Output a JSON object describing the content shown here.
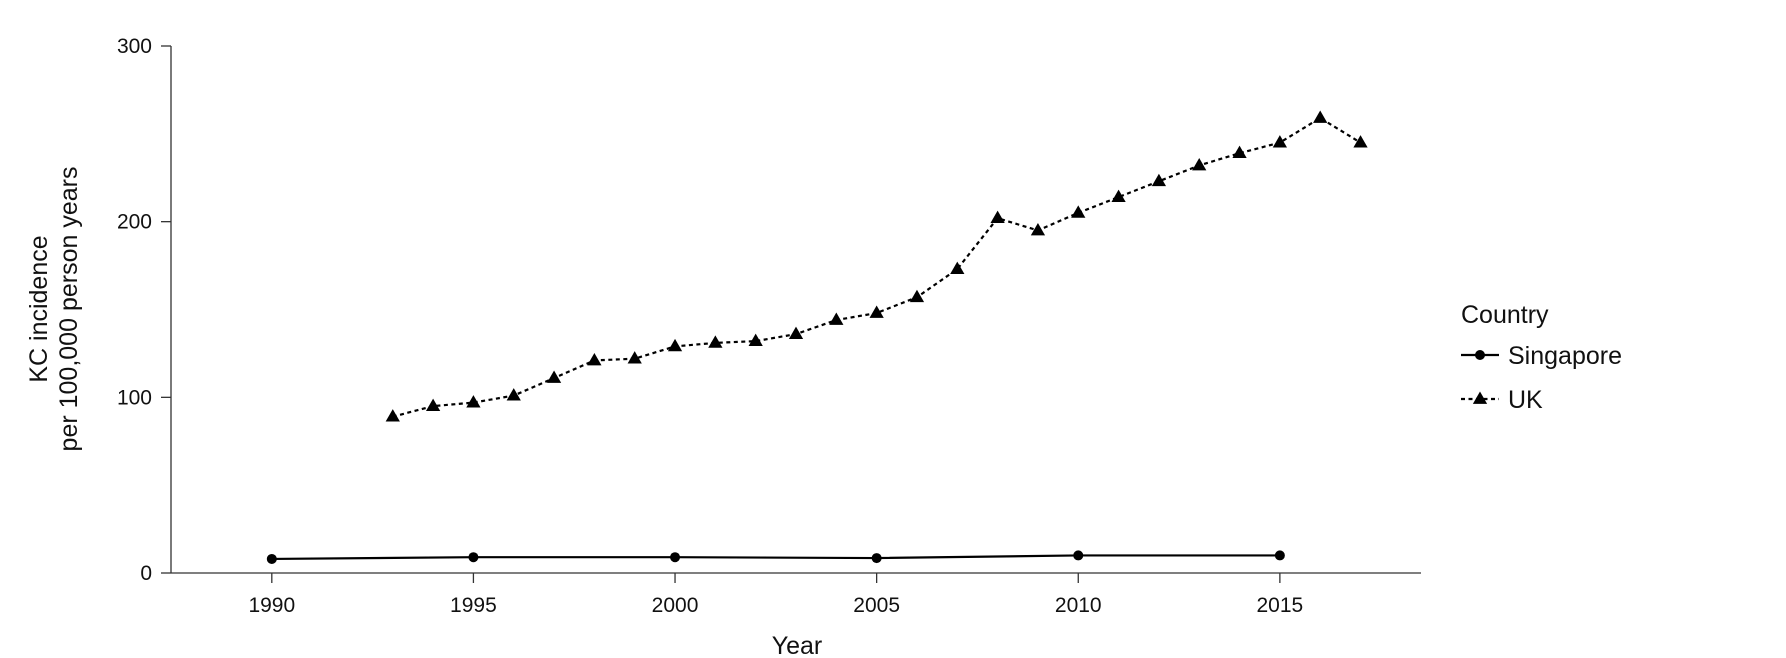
{
  "chart_data": {
    "type": "line",
    "title": "",
    "xlabel": "Year",
    "ylabel_line1": "KC incidence",
    "ylabel_line2": "per 100,000 person years",
    "xlim": [
      1987.5,
      2018.5
    ],
    "ylim": [
      0,
      300
    ],
    "xticks": [
      1990,
      1995,
      2000,
      2005,
      2010,
      2015
    ],
    "yticks": [
      0,
      100,
      200,
      300
    ],
    "grid": false,
    "legend_title": "Country",
    "legend_position": "right",
    "series": [
      {
        "name": "Singapore",
        "marker": "circle",
        "line_style": "solid",
        "color": "#000000",
        "x": [
          1990,
          1995,
          2000,
          2005,
          2010,
          2015
        ],
        "y": [
          8,
          9,
          9,
          8.5,
          10,
          10
        ]
      },
      {
        "name": "UK",
        "marker": "triangle",
        "line_style": "dashed",
        "color": "#000000",
        "x": [
          1993,
          1994,
          1995,
          1996,
          1997,
          1998,
          1999,
          2000,
          2001,
          2002,
          2003,
          2004,
          2005,
          2006,
          2007,
          2008,
          2009,
          2010,
          2011,
          2012,
          2013,
          2014,
          2015,
          2016,
          2017
        ],
        "y": [
          89,
          95,
          97,
          101,
          111,
          121,
          122,
          129,
          131,
          132,
          136,
          144,
          148,
          157,
          173,
          202,
          195,
          205,
          214,
          223,
          232,
          239,
          245,
          259,
          245
        ]
      }
    ]
  }
}
